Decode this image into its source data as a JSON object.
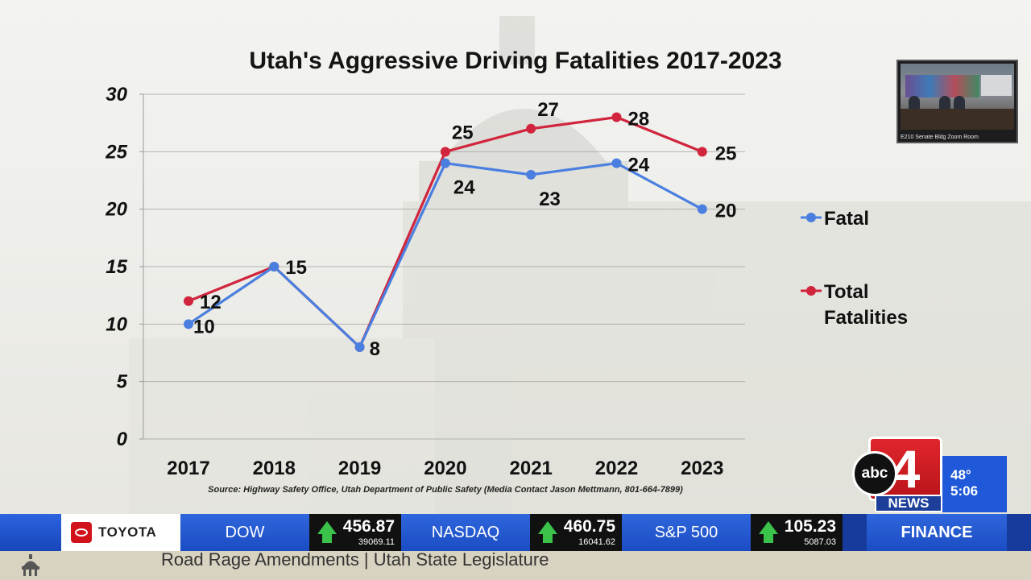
{
  "chart_data": {
    "type": "line",
    "title": "Utah's Aggressive Driving Fatalities 2017-2023",
    "categories": [
      "2017",
      "2018",
      "2019",
      "2020",
      "2021",
      "2022",
      "2023"
    ],
    "ylim": [
      0,
      30
    ],
    "yticks": [
      0,
      5,
      10,
      15,
      20,
      25,
      30
    ],
    "grid": true,
    "legend": "right",
    "series": [
      {
        "name": "Fatal",
        "color": "#4a7fe0",
        "values": [
          10,
          15,
          8,
          24,
          23,
          24,
          20
        ],
        "labels": [
          "10",
          "",
          "",
          "24",
          "23",
          "24",
          "20"
        ]
      },
      {
        "name": "Total Fatalities",
        "color": "#d0253c",
        "values": [
          12,
          15,
          8,
          25,
          27,
          28,
          25
        ],
        "labels": [
          "12",
          "15",
          "8",
          "25",
          "27",
          "28",
          "25"
        ]
      }
    ],
    "source": "Source: Highway Safety Office, Utah Department of Public Safety (Media Contact Jason Mettmann, 801-664-7899)"
  },
  "zoom_inset": {
    "caption": "E210 Senate Bldg Zoom Room"
  },
  "branding": {
    "network": "abc",
    "channel": "4",
    "news": "NEWS"
  },
  "weather": {
    "temperature": "48°",
    "time": "5:06"
  },
  "ticker": {
    "sponsor": "TOYOTA",
    "stocks": [
      {
        "name": "DOW",
        "value": "456.87",
        "index": "39069.11",
        "direction": "up"
      },
      {
        "name": "NASDAQ",
        "value": "460.75",
        "index": "16041.62",
        "direction": "up"
      },
      {
        "name": "S&P 500",
        "value": "105.23",
        "index": "5087.03",
        "direction": "up"
      }
    ],
    "section": "FINANCE"
  },
  "lower_third": {
    "headline": "Road Rage Amendments | Utah State Legislature"
  }
}
